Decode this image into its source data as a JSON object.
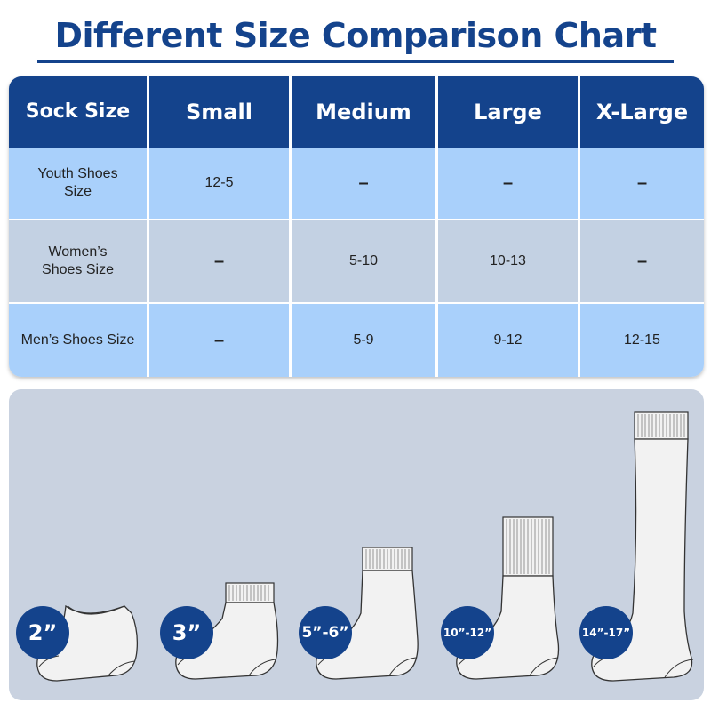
{
  "title": "Different Size Comparison Chart",
  "table": {
    "header": [
      "Sock Size",
      "Small",
      "Medium",
      "Large",
      "X-Large"
    ],
    "rows": [
      {
        "label": "Youth Shoes Size",
        "values": [
          "12-5",
          "–",
          "–",
          "–"
        ]
      },
      {
        "label": "Women’s Shoes Size",
        "values": [
          "–",
          "5-10",
          "10-13",
          "–"
        ]
      },
      {
        "label": "Men’s Shoes Size",
        "values": [
          "–",
          "5-9",
          "9-12",
          "12-15"
        ]
      }
    ]
  },
  "socks": [
    {
      "label": "2”",
      "type": "no-show"
    },
    {
      "label": "3”",
      "type": "ankle"
    },
    {
      "label": "5”-6”",
      "type": "quarter"
    },
    {
      "label": "10”-12”",
      "type": "crew"
    },
    {
      "label": "14”-17”",
      "type": "knee-high"
    }
  ],
  "colors": {
    "brand": "#14438c",
    "row_light": "#a9d0fb",
    "row_gray": "#c3d1e3",
    "panel": "#c9d2e0"
  }
}
